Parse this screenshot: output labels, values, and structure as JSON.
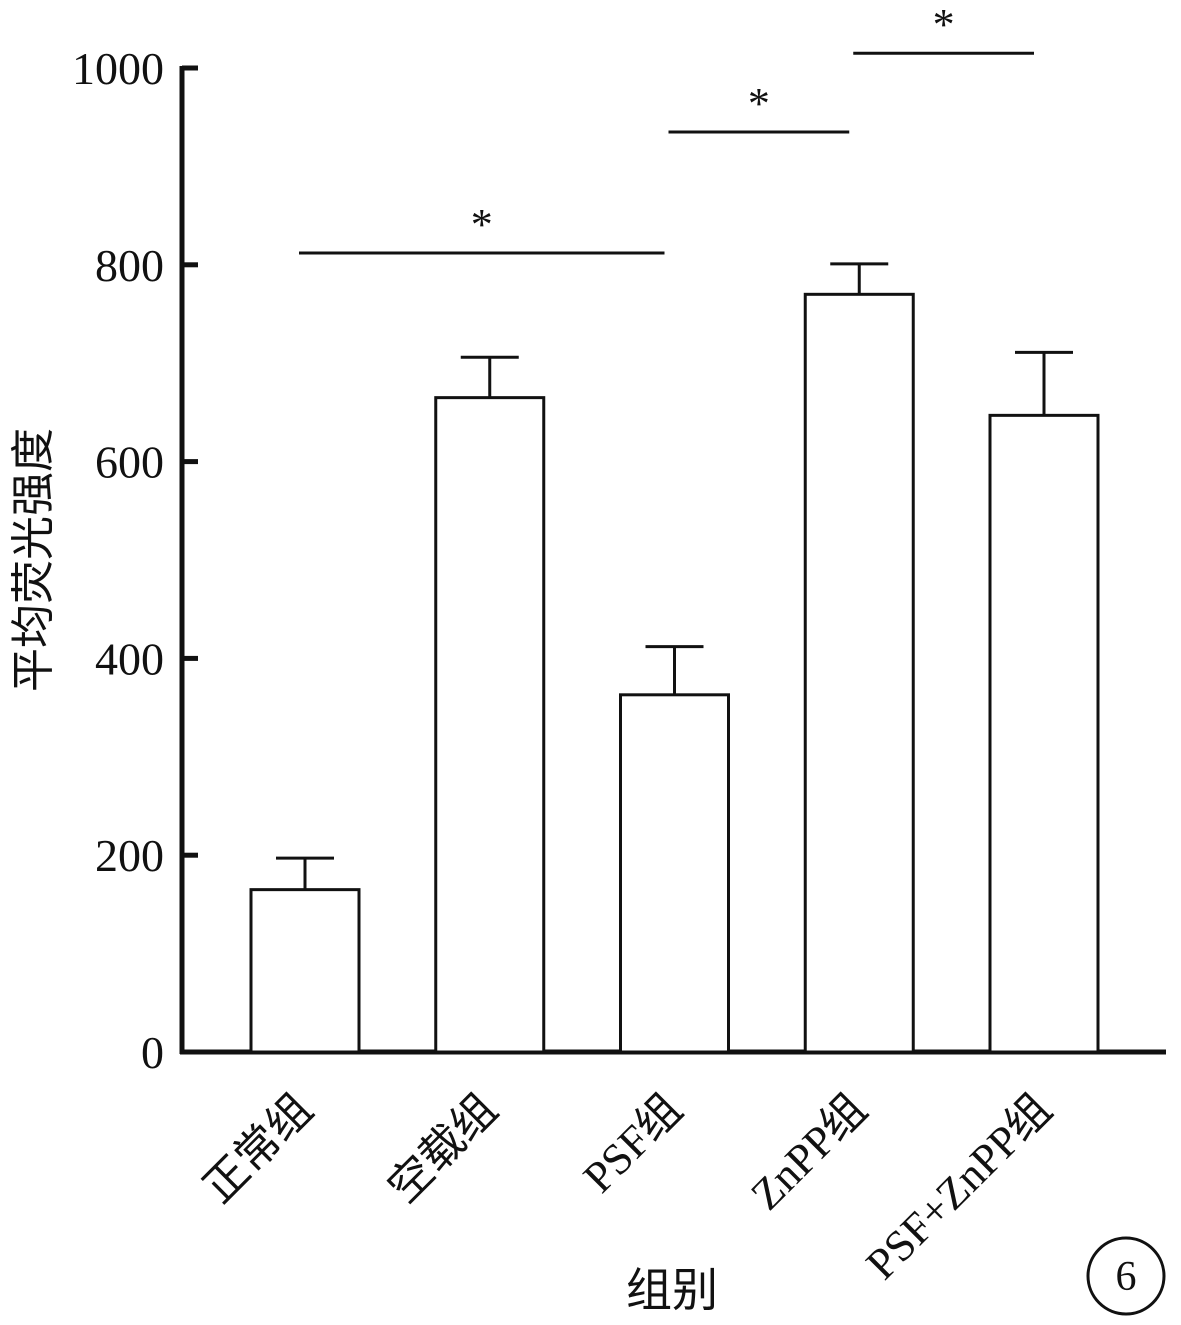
{
  "chart_data": {
    "type": "bar",
    "xlabel": "组别",
    "ylabel": "平均荧光强度",
    "categories": [
      "正常组",
      "空载组",
      "PSF组",
      "ZnPP组",
      "PSF+ZnPP组"
    ],
    "values": [
      165,
      665,
      363,
      770,
      647
    ],
    "errors": [
      32,
      41,
      49,
      31,
      64
    ],
    "ylim": [
      0,
      1000
    ],
    "yticks": [
      0,
      200,
      400,
      600,
      800,
      1000
    ],
    "grid": false,
    "legend": "none",
    "significance": [
      {
        "from": 0,
        "to": 2,
        "y": 812,
        "label": "*"
      },
      {
        "from": 2,
        "to": 3,
        "y": 935,
        "label": "*"
      },
      {
        "from": 3,
        "to": 4,
        "y": 1015,
        "label": "*"
      }
    ],
    "panel_label": "6"
  }
}
